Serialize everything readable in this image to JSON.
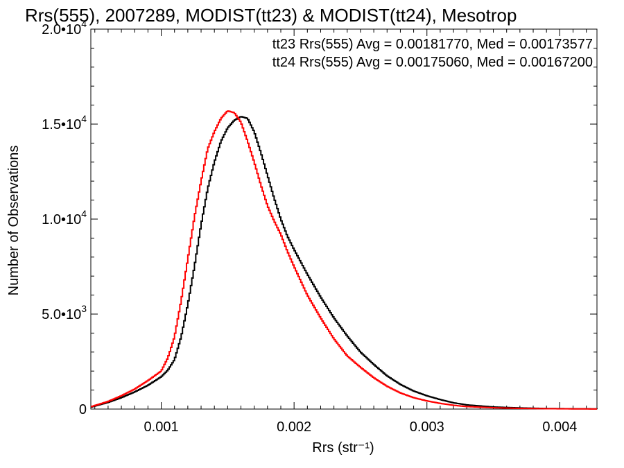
{
  "chart_data": {
    "type": "line",
    "step": true,
    "title": "Rrs(555), 2007289, MODIST(tt23) & MODIST(tt24), Mesotrop",
    "xlabel": "Rrs (str⁻¹)",
    "ylabel": "Number of Observations",
    "xlim": [
      0.00047,
      0.00428
    ],
    "ylim": [
      0,
      20000
    ],
    "x_ticks": [
      0.001,
      0.002,
      0.003,
      0.004
    ],
    "x_tick_labels": [
      "0.001",
      "0.002",
      "0.003",
      "0.004"
    ],
    "y_ticks": [
      0,
      5000,
      10000,
      15000,
      20000
    ],
    "y_tick_labels": [
      {
        "mantissa": "0",
        "exp": ""
      },
      {
        "mantissa": "5.0•10",
        "exp": "3"
      },
      {
        "mantissa": "1.0•10",
        "exp": "4"
      },
      {
        "mantissa": "1.5•10",
        "exp": "4"
      },
      {
        "mantissa": "2.0•10",
        "exp": "4"
      }
    ],
    "grid": false,
    "legend_position": "top-right",
    "annotations": [
      {
        "text": "tt23 Rrs(555) Avg = 0.00181770, Med = 0.00173577",
        "color": "#000000"
      },
      {
        "text": "tt24 Rrs(555) Avg = 0.00175060, Med = 0.00167200",
        "color": "#ff0000"
      }
    ],
    "series": [
      {
        "color": "#000000",
        "x": [
          0.00047,
          0.0006,
          0.0007,
          0.0008,
          0.0009,
          0.001,
          0.00105,
          0.0011,
          0.00115,
          0.0012,
          0.00125,
          0.0013,
          0.00135,
          0.0014,
          0.00145,
          0.0015,
          0.00155,
          0.0016,
          0.00165,
          0.0017,
          0.00175,
          0.0018,
          0.00185,
          0.0019,
          0.00195,
          0.002,
          0.0021,
          0.0022,
          0.0023,
          0.0024,
          0.0025,
          0.0026,
          0.0027,
          0.0028,
          0.0029,
          0.003,
          0.0031,
          0.0032,
          0.0033,
          0.0035,
          0.0037,
          0.0039,
          0.0041,
          0.00428
        ],
        "y": [
          100,
          350,
          600,
          900,
          1250,
          1700,
          2050,
          2600,
          3800,
          5500,
          7500,
          9700,
          11600,
          13000,
          14100,
          14800,
          15200,
          15400,
          15300,
          14600,
          13500,
          12300,
          11100,
          10000,
          9100,
          8400,
          7100,
          5900,
          4800,
          3850,
          3000,
          2350,
          1750,
          1300,
          950,
          700,
          500,
          330,
          220,
          110,
          60,
          30,
          15,
          10
        ]
      },
      {
        "color": "#ff0000",
        "x": [
          0.00047,
          0.0006,
          0.0007,
          0.0008,
          0.0009,
          0.001,
          0.00105,
          0.0011,
          0.00115,
          0.0012,
          0.00125,
          0.0013,
          0.00135,
          0.0014,
          0.00145,
          0.0015,
          0.00155,
          0.0016,
          0.00165,
          0.0017,
          0.00175,
          0.0018,
          0.00185,
          0.0019,
          0.00195,
          0.002,
          0.0021,
          0.0022,
          0.0023,
          0.0024,
          0.0025,
          0.0026,
          0.0027,
          0.0028,
          0.0029,
          0.003,
          0.0031,
          0.0032,
          0.0033,
          0.0035,
          0.0037,
          0.0039,
          0.0041,
          0.00428
        ],
        "y": [
          120,
          400,
          700,
          1050,
          1500,
          2000,
          2700,
          3800,
          5700,
          7900,
          10100,
          12000,
          13700,
          14600,
          15300,
          15700,
          15600,
          15100,
          14100,
          13000,
          11800,
          10700,
          9900,
          9200,
          8300,
          7500,
          6000,
          4800,
          3700,
          2800,
          2200,
          1650,
          1200,
          850,
          600,
          430,
          300,
          200,
          130,
          70,
          35,
          20,
          10,
          5
        ]
      }
    ]
  }
}
